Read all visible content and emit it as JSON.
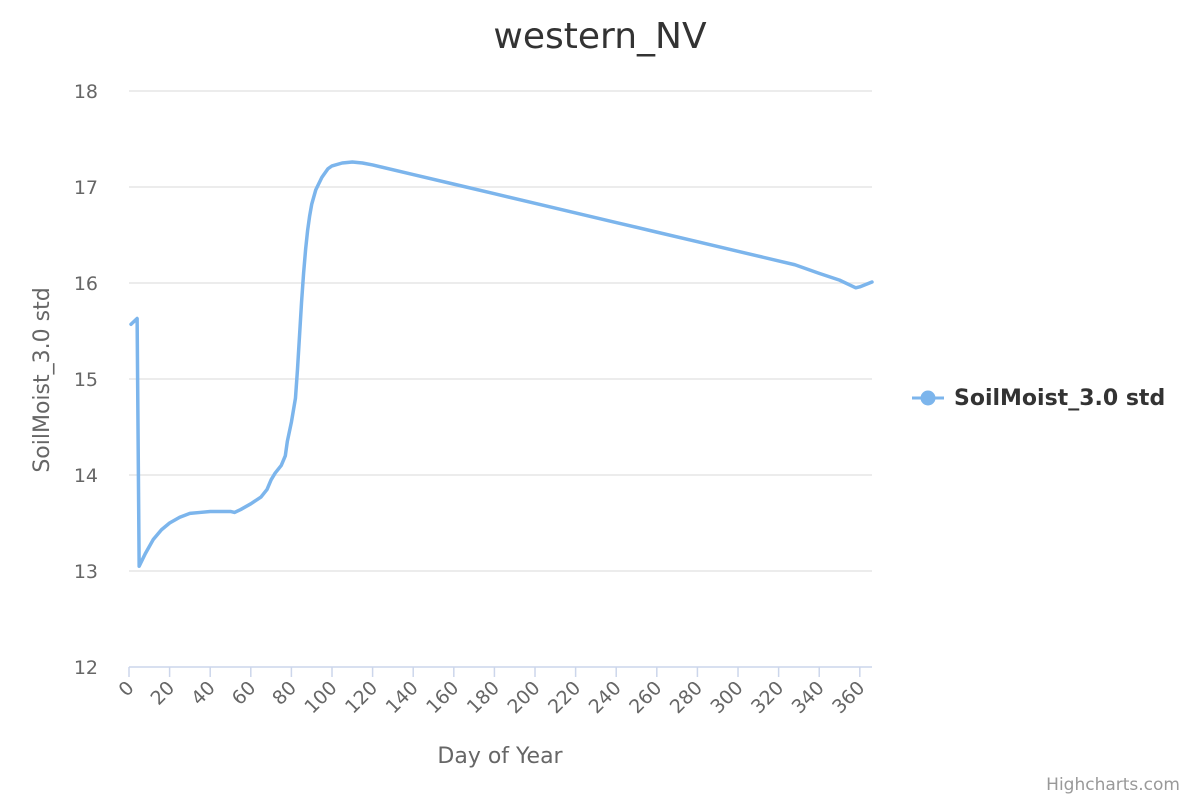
{
  "chart_data": {
    "type": "line",
    "title": "western_NV",
    "xlabel": "Day of Year",
    "ylabel": "SoilMoist_3.0 std",
    "xlim": [
      0,
      366
    ],
    "ylim": [
      12,
      18
    ],
    "x_ticks": [
      0,
      20,
      40,
      60,
      80,
      100,
      120,
      140,
      160,
      180,
      200,
      220,
      240,
      260,
      280,
      300,
      320,
      340,
      360
    ],
    "y_ticks": [
      12,
      13,
      14,
      15,
      16,
      17,
      18
    ],
    "grid": true,
    "legend_position": "right",
    "series": [
      {
        "name": "SoilMoist_3.0 std",
        "color": "#7cb5ec",
        "x": [
          1,
          4,
          5,
          8,
          12,
          16,
          20,
          25,
          30,
          35,
          40,
          45,
          50,
          52,
          55,
          60,
          65,
          68,
          70,
          72,
          75,
          77,
          78,
          80,
          82,
          83,
          84,
          85,
          86,
          87,
          88,
          89,
          90,
          92,
          95,
          98,
          100,
          105,
          110,
          115,
          120,
          140,
          160,
          180,
          200,
          220,
          240,
          260,
          280,
          300,
          320,
          328,
          340,
          350,
          355,
          358,
          360,
          366
        ],
        "values": [
          15.57,
          15.63,
          13.05,
          13.18,
          13.33,
          13.43,
          13.5,
          13.56,
          13.6,
          13.61,
          13.62,
          13.62,
          13.62,
          13.61,
          13.64,
          13.7,
          13.77,
          13.85,
          13.95,
          14.02,
          14.1,
          14.2,
          14.35,
          14.55,
          14.8,
          15.1,
          15.45,
          15.8,
          16.1,
          16.35,
          16.55,
          16.7,
          16.82,
          16.97,
          17.1,
          17.19,
          17.22,
          17.25,
          17.26,
          17.25,
          17.23,
          17.13,
          17.03,
          16.93,
          16.83,
          16.73,
          16.63,
          16.53,
          16.43,
          16.33,
          16.23,
          16.19,
          16.1,
          16.03,
          15.98,
          15.95,
          15.96,
          16.01
        ]
      }
    ],
    "credits": "Highcharts.com"
  }
}
